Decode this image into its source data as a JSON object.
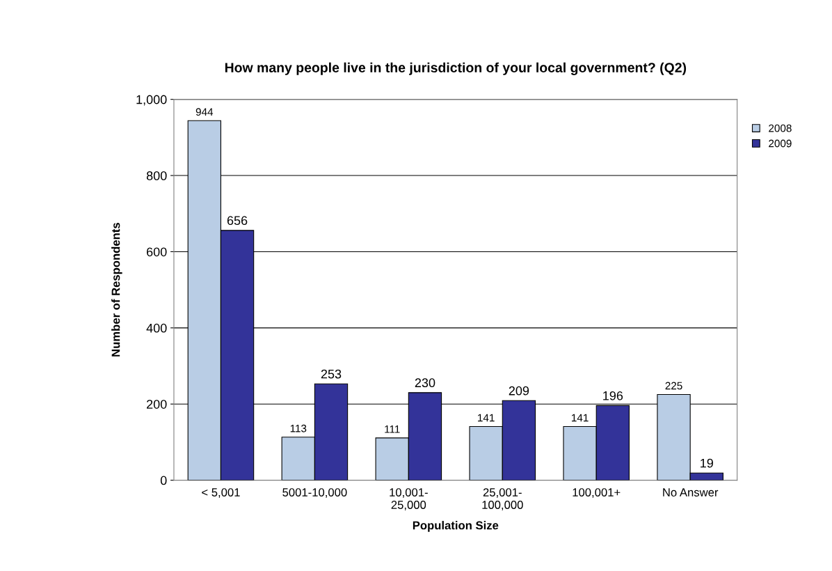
{
  "chart_data": {
    "type": "bar",
    "title": "How many people live in the jurisdiction of your local government? (Q2)",
    "xlabel": "Population Size",
    "ylabel": "Number of Respondents",
    "categories": [
      "< 5,001",
      "5001-10,000",
      "10,001-\n25,000",
      "25,001-\n100,000",
      "100,001+",
      "No Answer"
    ],
    "series": [
      {
        "name": "2008",
        "color": "#b9cde5",
        "values": [
          944,
          113,
          111,
          141,
          141,
          225
        ]
      },
      {
        "name": "2009",
        "color": "#333399",
        "values": [
          656,
          253,
          230,
          209,
          196,
          19
        ]
      }
    ],
    "ylim": [
      0,
      1000
    ],
    "yticks": [
      0,
      200,
      400,
      600,
      800,
      {
        "value": 1000,
        "label": "1,000"
      }
    ],
    "grid": "y",
    "legend": "top right",
    "data_labels": true
  }
}
